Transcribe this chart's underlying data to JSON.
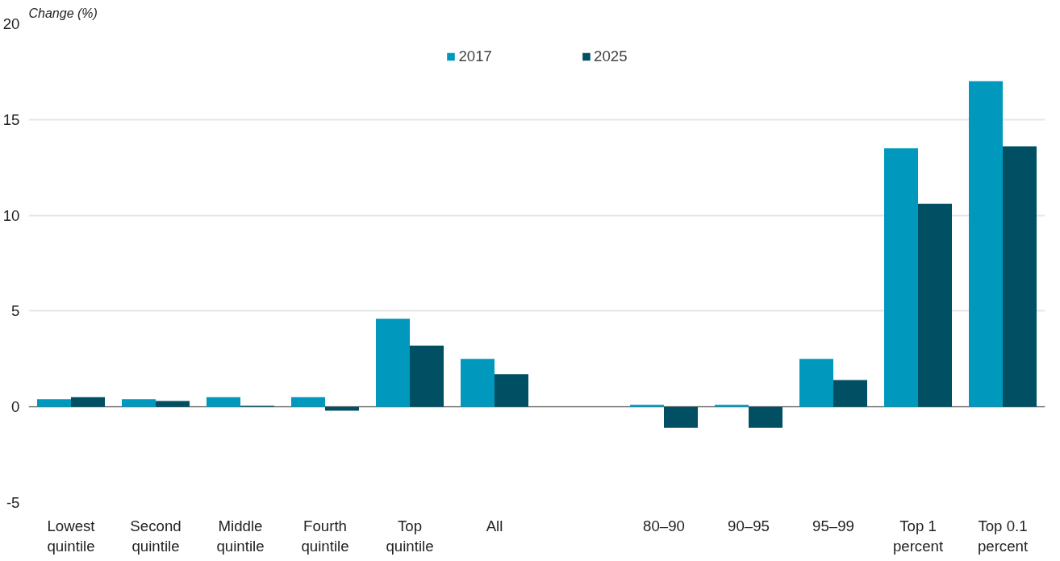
{
  "chart_data": {
    "type": "bar",
    "ylabel": "Change (%)",
    "categories": [
      "Lowest quintile",
      "Second quintile",
      "Middle quintile",
      "Fourth quintile",
      "Top quintile",
      "All",
      null,
      "80–90",
      "90–95",
      "95–99",
      "Top 1 percent",
      "Top 0.1 percent"
    ],
    "series": [
      {
        "name": "2017",
        "color": "#0098bc",
        "values": [
          0.4,
          0.4,
          0.5,
          0.5,
          4.6,
          2.5,
          null,
          0.1,
          0.1,
          2.5,
          13.5,
          17.0
        ]
      },
      {
        "name": "2025",
        "color": "#004f63",
        "values": [
          0.5,
          0.3,
          0.05,
          -0.2,
          3.2,
          1.7,
          null,
          -1.1,
          -1.1,
          1.4,
          10.6,
          13.6
        ]
      }
    ],
    "ylim": [
      -5,
      20
    ],
    "yticks": [
      -5,
      0,
      5,
      10,
      15,
      20
    ],
    "grid": "y",
    "legend": "top"
  }
}
